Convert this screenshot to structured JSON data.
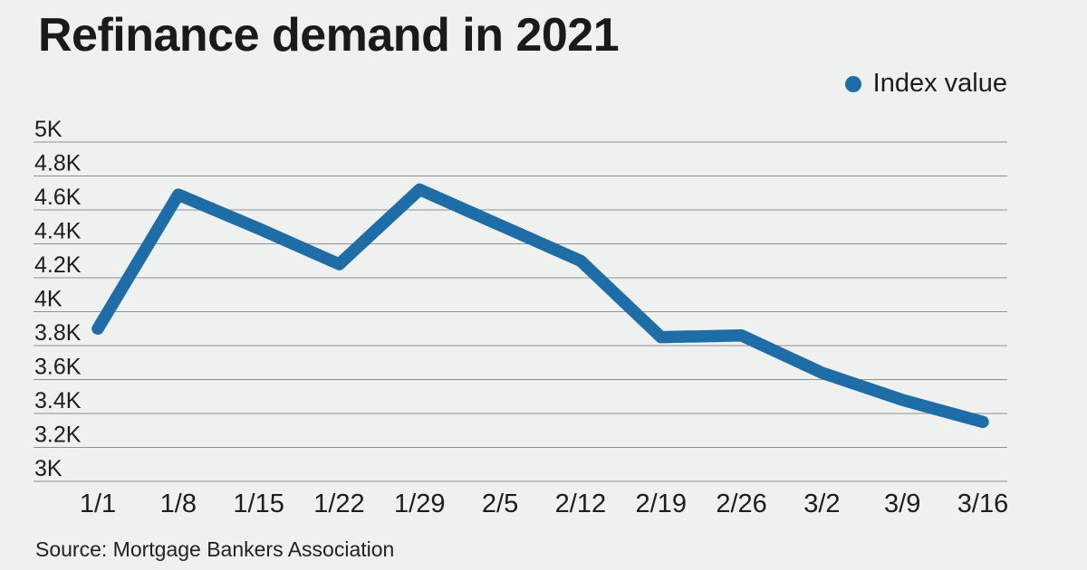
{
  "title": "Refinance demand in 2021",
  "legend": {
    "label": "Index value"
  },
  "source": "Source: Mortgage Bankers Association",
  "colors": {
    "background": "#eff0f0",
    "line": "#1f6da6",
    "grid": "#8f9193",
    "title_text": "#1a1a1a",
    "label_text": "#1d1d1d",
    "source_text": "#222222"
  },
  "chart_data": {
    "type": "line",
    "title": "Refinance demand in 2021",
    "categories": [
      "1/1",
      "1/8",
      "1/15",
      "1/22",
      "1/29",
      "2/5",
      "2/12",
      "2/19",
      "2/26",
      "3/2",
      "3/9",
      "3/16"
    ],
    "series": [
      {
        "name": "Index value",
        "color": "#1f6da6",
        "values": [
          3900,
          4690,
          4490,
          4280,
          4720,
          4510,
          4300,
          3850,
          3860,
          3640,
          3480,
          3350
        ]
      }
    ],
    "xlabel": "",
    "ylabel": "",
    "ylim": [
      3000,
      5000
    ],
    "ytick_step": 200,
    "ytick_labels": [
      "3K",
      "3.2K",
      "3.4K",
      "3.6K",
      "3.8K",
      "4K",
      "4.2K",
      "4.4K",
      "4.6K",
      "4.8K",
      "5K"
    ],
    "grid": true,
    "legend_position": "top-right",
    "source": "Source: Mortgage Bankers Association"
  }
}
